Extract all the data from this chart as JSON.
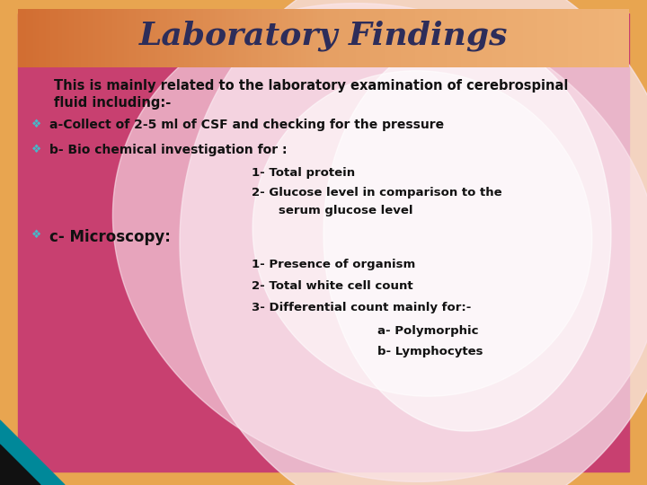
{
  "title": "Laboratory Findings",
  "title_color": "#2d2d5a",
  "title_fontsize": 26,
  "title_style": "italic",
  "title_weight": "bold",
  "intro_line1": "This is mainly related to the laboratory examination of cerebrospinal",
  "intro_line2": "fluid including:-",
  "bullet_symbol": "❖",
  "bullet_color": "#44bbcc",
  "bullets": [
    "a-Collect of 2-5 ml of CSF and checking for the pressure",
    "b- Bio chemical investigation for :"
  ],
  "sub_items_b": [
    "1- Total protein",
    "2- Glucose level in comparison to the",
    "serum glucose level"
  ],
  "bullet_c": "c- Microscopy:",
  "sub_items_c": [
    "1- Presence of organism",
    "2- Total white cell count",
    "3- Differential count mainly for:-"
  ],
  "sub_sub_items_c": [
    "a- Polymorphic",
    "b- Lymphocytes"
  ],
  "text_color": "#111111",
  "outer_bg": "#e8a050",
  "inner_bg": "#c84070",
  "header_left": "#d47030",
  "header_right": "#f0b870"
}
